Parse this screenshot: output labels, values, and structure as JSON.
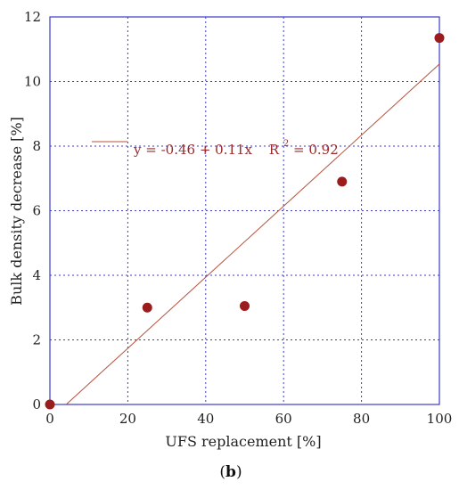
{
  "chart_data": {
    "type": "scatter",
    "xlabel": "UFS replacement [%]",
    "ylabel": "Bulk density decrease [%]",
    "xlim": [
      0,
      100
    ],
    "ylim": [
      0,
      12
    ],
    "xticks": [
      0,
      20,
      40,
      60,
      80,
      100
    ],
    "yticks": [
      0,
      2,
      4,
      6,
      8,
      10,
      12
    ],
    "grid": true,
    "legend_position": "top-left",
    "series": [
      {
        "x": [
          0,
          25,
          50,
          75,
          100
        ],
        "y": [
          0,
          3.0,
          3.05,
          6.9,
          11.35
        ]
      }
    ],
    "fit": {
      "intercept": -0.46,
      "slope": 0.11,
      "equation": "y = -0.46 + 0.11x",
      "r2_prefix": "R",
      "r2_sup": "2",
      "r2_suffix": " = 0.92"
    },
    "caption": {
      "open": "(",
      "letter": "b",
      "close": ")"
    },
    "colors": {
      "points": "#9b1c1c",
      "fit": "#b5523c",
      "grid": "#3b3bcc",
      "frame": "#3b3bcc"
    }
  }
}
